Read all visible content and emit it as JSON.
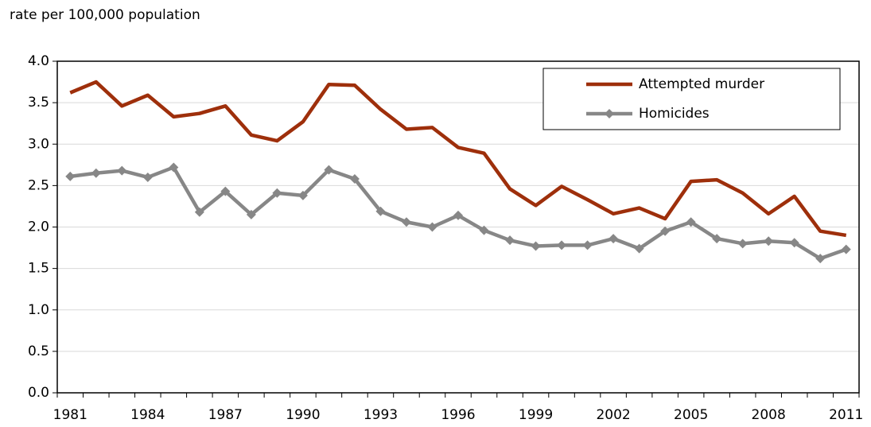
{
  "chart_data": {
    "type": "line",
    "y_label": "rate per 100,000 population",
    "categories": [
      "1981",
      null,
      null,
      "1984",
      null,
      null,
      "1987",
      null,
      null,
      "1990",
      null,
      null,
      "1993",
      null,
      null,
      "1996",
      null,
      null,
      "1999",
      null,
      null,
      "2002",
      null,
      null,
      "2005",
      null,
      null,
      "2008",
      null,
      null,
      "2011"
    ],
    "series": [
      {
        "name": "Attempted murder",
        "color": "#9e2f0b",
        "marker": "none",
        "values": [
          3.62,
          3.75,
          3.46,
          3.59,
          3.33,
          3.37,
          3.46,
          3.11,
          3.04,
          3.27,
          3.72,
          3.71,
          3.42,
          3.18,
          3.2,
          2.96,
          2.89,
          2.46,
          2.26,
          2.49,
          2.33,
          2.16,
          2.23,
          2.1,
          2.55,
          2.57,
          2.41,
          2.16,
          2.37,
          1.95,
          1.9
        ]
      },
      {
        "name": "Homicides",
        "color": "#878787",
        "marker": "diamond",
        "values": [
          2.61,
          2.65,
          2.68,
          2.6,
          2.72,
          2.18,
          2.43,
          2.15,
          2.41,
          2.38,
          2.69,
          2.58,
          2.19,
          2.06,
          2.0,
          2.14,
          1.96,
          1.84,
          1.77,
          1.78,
          1.78,
          1.86,
          1.74,
          1.95,
          2.06,
          1.86,
          1.8,
          1.83,
          1.81,
          1.62,
          1.73
        ]
      }
    ],
    "ylim": [
      0,
      4
    ],
    "yticks": [
      {
        "value": 0,
        "label": "0.0"
      },
      0.5,
      {
        "value": 1,
        "label": "1.0"
      },
      1.5,
      {
        "value": 2,
        "label": "2.0"
      },
      2.5,
      {
        "value": 3,
        "label": "3.0"
      },
      3.5,
      {
        "value": 4,
        "label": "4.0"
      }
    ],
    "grid": true,
    "legend": "upper right"
  }
}
